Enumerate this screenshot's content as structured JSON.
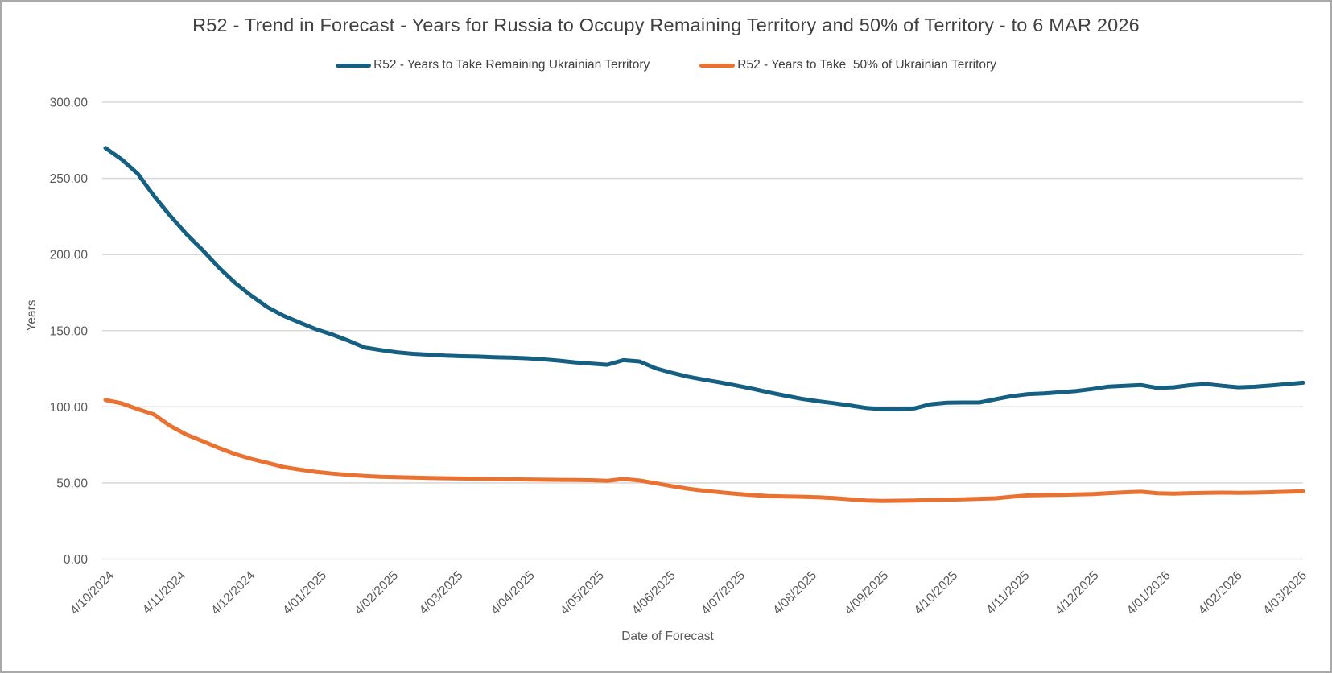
{
  "title": "R52 - Trend in Forecast - Years for Russia to Occupy Remaining Territory and 50% of Territory - to 6 MAR 2026",
  "legend": {
    "items": [
      {
        "label": "R52 - Years to Take Remaining Ukrainian Territory",
        "color": "#156082"
      },
      {
        "label": "R52 - Years to Take  50% of Ukrainian Territory",
        "color": "#E97132"
      }
    ]
  },
  "chart_data": {
    "type": "line",
    "title": "R52 - Trend in Forecast - Years for Russia to Occupy Remaining Territory and 50% of Territory - to 6 MAR 2026",
    "xlabel": "Date of Forecast",
    "ylabel": "Years",
    "ylim": [
      0,
      300
    ],
    "y_tick_values": [
      300,
      250,
      200,
      150,
      100,
      50,
      0
    ],
    "y_tick_labels": [
      "300.00",
      "250.00",
      "200.00",
      "150.00",
      "100.00",
      "50.00",
      "0.00"
    ],
    "grid": "horizontal",
    "gridline_color": "#d9d9d9",
    "axis_text_color": "#595959",
    "legend_position": "top",
    "x_tick_labels": [
      "4/10/2024",
      "4/11/2024",
      "4/12/2024",
      "4/01/2025",
      "4/02/2025",
      "4/03/2025",
      "4/04/2025",
      "4/05/2025",
      "4/06/2025",
      "4/07/2025",
      "4/08/2025",
      "4/09/2025",
      "4/10/2025",
      "4/11/2025",
      "4/12/2025",
      "4/01/2026",
      "4/02/2026",
      "4/03/2026"
    ],
    "x_tick_days": [
      0,
      31,
      61,
      92,
      123,
      151,
      182,
      212,
      243,
      273,
      304,
      335,
      365,
      396,
      426,
      457,
      488,
      516
    ],
    "x_total_days": 518,
    "sampling": "weekly forecasts, 75 points from 4/10/2024 to 6/03/2026",
    "series": [
      {
        "name": "R52 - Years to Take Remaining Ukrainian Territory",
        "color": "#156082",
        "values": [
          270,
          262.5,
          253,
          238.5,
          225.5,
          213.5,
          203,
          191.5,
          181.5,
          173,
          165.5,
          159.8,
          155.3,
          151,
          147.5,
          143.5,
          139,
          137.3,
          135.8,
          134.8,
          134.2,
          133.6,
          133.2,
          133.0,
          132.6,
          132.3,
          131.9,
          131.2,
          130.3,
          129.2,
          128.4,
          127.6,
          130.6,
          129.8,
          125.3,
          122.3,
          119.8,
          117.8,
          116.0,
          114.0,
          111.8,
          109.5,
          107.3,
          105.3,
          103.7,
          102.4,
          100.9,
          99.3,
          98.5,
          98.3,
          99.0,
          101.7,
          102.7,
          102.8,
          102.8,
          105.0,
          107.0,
          108.3,
          108.8,
          109.6,
          110.4,
          111.7,
          113.3,
          113.8,
          114.3,
          112.4,
          112.8,
          114.2,
          115.0,
          113.8,
          112.8,
          113.2,
          114.0,
          114.9,
          115.8
        ]
      },
      {
        "name": "R52 - Years to Take  50% of Ukrainian Territory",
        "color": "#E97132",
        "values": [
          104.5,
          102.3,
          98.5,
          95.0,
          87.5,
          81.8,
          77.5,
          73.0,
          69.0,
          65.8,
          63.2,
          60.5,
          58.8,
          57.3,
          56.2,
          55.3,
          54.6,
          54.1,
          53.8,
          53.5,
          53.3,
          53.1,
          52.9,
          52.7,
          52.5,
          52.4,
          52.3,
          52.1,
          52.0,
          51.9,
          51.8,
          51.4,
          52.6,
          51.6,
          49.8,
          47.9,
          46.2,
          44.9,
          43.8,
          42.8,
          42.0,
          41.4,
          41.1,
          40.9,
          40.6,
          40.0,
          39.2,
          38.5,
          38.2,
          38.3,
          38.5,
          38.8,
          39.0,
          39.3,
          39.6,
          39.9,
          40.9,
          41.8,
          42.0,
          42.2,
          42.4,
          42.7,
          43.3,
          43.8,
          44.2,
          43.2,
          43.0,
          43.3,
          43.5,
          43.6,
          43.5,
          43.6,
          43.9,
          44.2,
          44.5
        ]
      }
    ]
  }
}
